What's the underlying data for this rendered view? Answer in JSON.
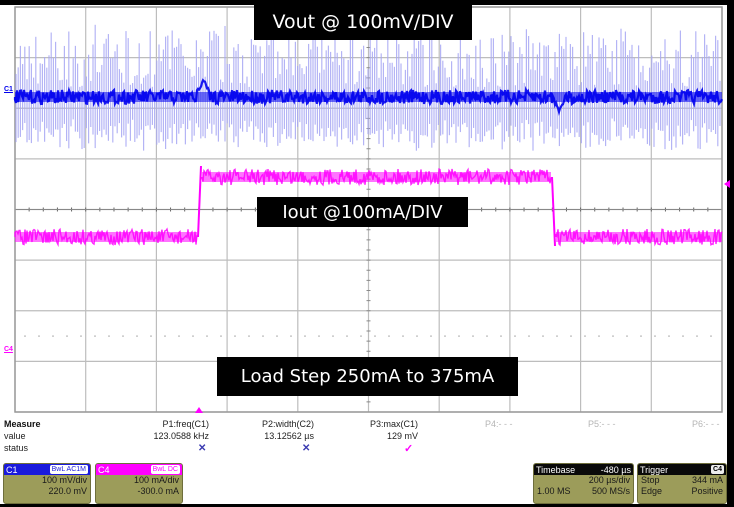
{
  "annotations": {
    "vout": "Vout @ 100mV/DIV",
    "iout": "Iout @100mA/DIV",
    "load_step": "Load Step 250mA to 375mA"
  },
  "markers": {
    "c1": "C1",
    "c4": "C4"
  },
  "measure": {
    "header_label": "Measure",
    "value_label": "value",
    "status_label": "status",
    "params": [
      {
        "name": "P1:freq(C1)",
        "value": "123.0588 kHz",
        "status": "✕"
      },
      {
        "name": "P2:width(C2)",
        "value": "13.12562 µs",
        "status": "✕"
      },
      {
        "name": "P3:max(C1)",
        "value": "129 mV",
        "status": "✓"
      },
      {
        "name": "P4:- - -",
        "value": "",
        "status": ""
      },
      {
        "name": "P5:- - -",
        "value": "",
        "status": ""
      },
      {
        "name": "P6:- - -",
        "value": "",
        "status": ""
      }
    ]
  },
  "channels": {
    "c1": {
      "label": "C1",
      "badges": "BwL AC1M",
      "vdiv": "100 mV/div",
      "offset": "220.0 mV",
      "color": "#1a1adc"
    },
    "c4": {
      "label": "C4",
      "badges": "BwL DC",
      "vdiv": "100 mA/div",
      "offset": "-300.0 mA",
      "color": "#ff00ff"
    }
  },
  "timebase": {
    "label": "Timebase",
    "delay": "-480 µs",
    "tdiv": "200 µs/div",
    "samples": "1.00 MS",
    "rate": "500 MS/s"
  },
  "trigger": {
    "label": "Trigger",
    "source": "C4",
    "mode": "Stop",
    "level": "344 mA",
    "type": "Edge",
    "slope": "Positive"
  },
  "colors": {
    "c1_trace": "#0000ee",
    "c1_trace_light": "#a8a8f4",
    "c4_trace": "#ff00ff",
    "grid": "#bdbdbd",
    "panel_bg": "#9c9c5a"
  }
}
